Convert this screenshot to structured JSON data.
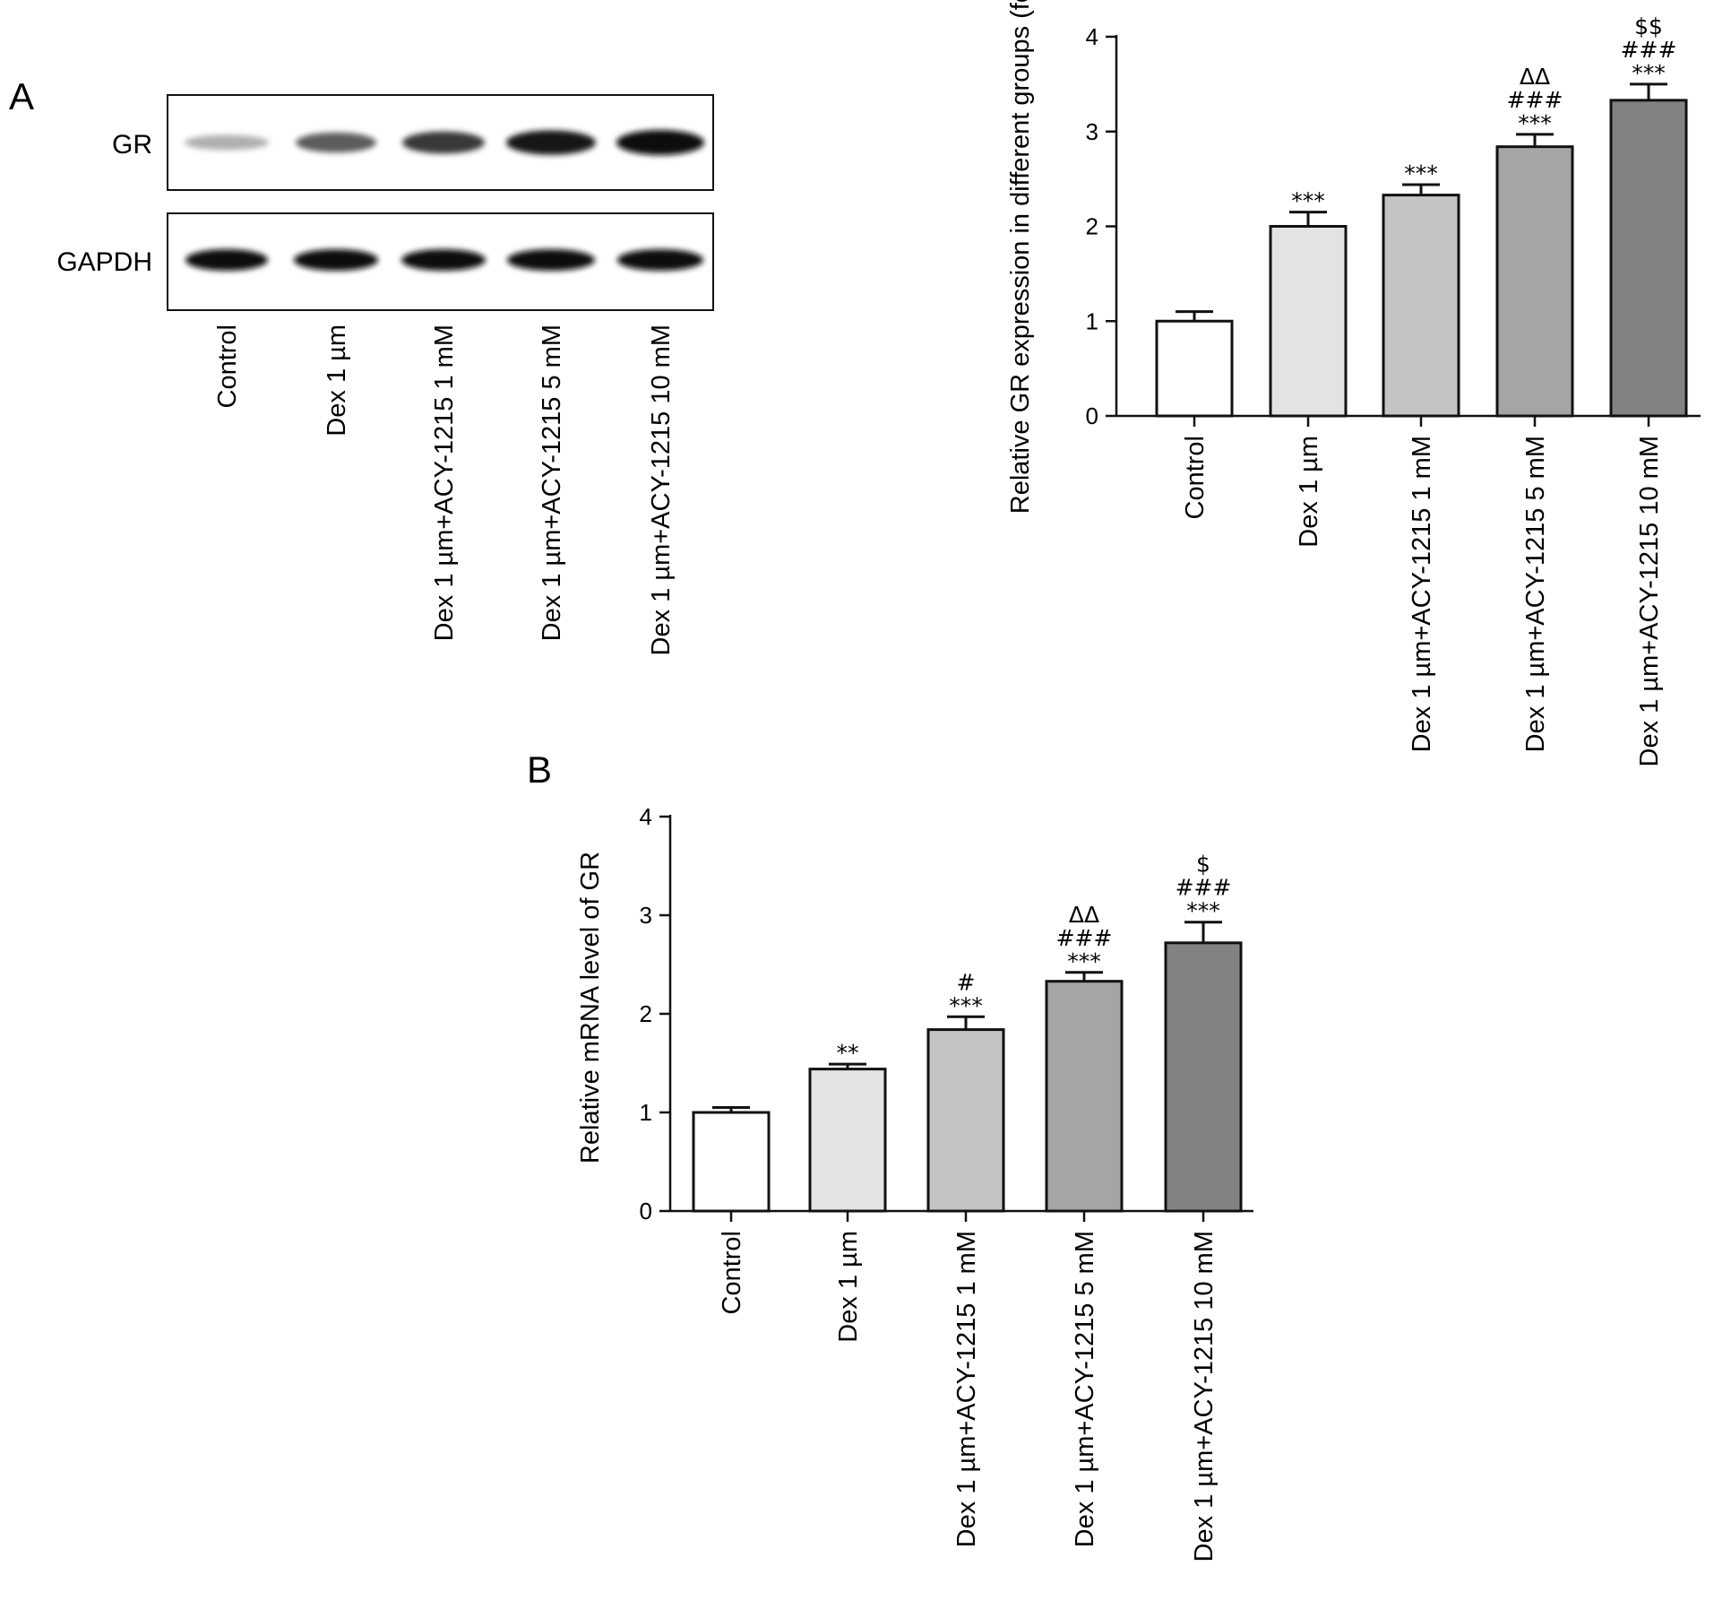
{
  "panel_labels": {
    "a": "A",
    "b": "B"
  },
  "blot": {
    "rows": [
      "GR",
      "GAPDH"
    ],
    "gr_intensity": [
      0.3,
      0.65,
      0.8,
      0.95,
      1.0
    ],
    "gapdh_intensity": [
      1.0,
      1.0,
      1.0,
      1.0,
      1.0
    ]
  },
  "categories": [
    "Control",
    "Dex 1 µm",
    "Dex 1 µm+ACY-1215 1 mM",
    "Dex 1 µm+ACY-1215 5 mM",
    "Dex 1 µm+ACY-1215 10 mM"
  ],
  "bar_colors": [
    "#ffffff",
    "#e3e3e3",
    "#c4c4c4",
    "#a5a5a5",
    "#828282"
  ],
  "chart_data": [
    {
      "type": "bar",
      "panel": "A",
      "categories": [
        "Control",
        "Dex 1 µm",
        "Dex 1 µm+ACY-1215 1 mM",
        "Dex 1 µm+ACY-1215 5 mM",
        "Dex 1 µm+ACY-1215 10 mM"
      ],
      "values": [
        1.0,
        2.0,
        2.33,
        2.84,
        3.33
      ],
      "errors": [
        0.1,
        0.15,
        0.11,
        0.13,
        0.17
      ],
      "significance": [
        [],
        [
          "***"
        ],
        [
          "***"
        ],
        [
          "ΔΔ",
          "###",
          "***"
        ],
        [
          "$$",
          "###",
          "***"
        ]
      ],
      "ylabel": "Relative GR expression in different groups (fold)",
      "ylim": [
        0,
        4
      ],
      "yticks": [
        "0",
        "1",
        "2",
        "3",
        "4"
      ]
    },
    {
      "type": "bar",
      "panel": "B",
      "categories": [
        "Control",
        "Dex 1 µm",
        "Dex 1 µm+ACY-1215 1 mM",
        "Dex 1 µm+ACY-1215 5 mM",
        "Dex 1 µm+ACY-1215 10 mM"
      ],
      "values": [
        1.0,
        1.44,
        1.84,
        2.33,
        2.72
      ],
      "errors": [
        0.05,
        0.05,
        0.13,
        0.09,
        0.21
      ],
      "significance": [
        [],
        [
          "**"
        ],
        [
          "#",
          "***"
        ],
        [
          "ΔΔ",
          "###",
          "***"
        ],
        [
          "$",
          "###",
          "***"
        ]
      ],
      "ylabel": "Relative mRNA level of GR",
      "ylim": [
        0,
        4
      ],
      "yticks": [
        "0",
        "1",
        "2",
        "3",
        "4"
      ]
    }
  ]
}
